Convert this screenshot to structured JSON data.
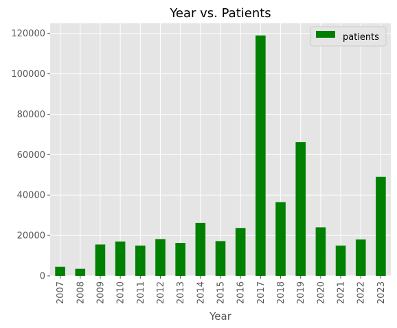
{
  "chart_data": {
    "type": "bar",
    "title": "Year vs. Patients",
    "xlabel": "Year",
    "ylabel": "",
    "categories": [
      "2007",
      "2008",
      "2009",
      "2010",
      "2011",
      "2012",
      "2013",
      "2014",
      "2015",
      "2016",
      "2017",
      "2018",
      "2019",
      "2020",
      "2021",
      "2022",
      "2023"
    ],
    "series": [
      {
        "name": "patients",
        "color": "#008000",
        "values": [
          4500,
          3500,
          15500,
          17000,
          15000,
          18200,
          16300,
          26200,
          17200,
          23700,
          119000,
          36500,
          66200,
          24000,
          15000,
          18000,
          49000
        ]
      }
    ],
    "ylim": [
      0,
      125000
    ],
    "yticks": [
      0,
      20000,
      40000,
      60000,
      80000,
      100000,
      120000
    ],
    "grid": true,
    "legend_position": "top-right",
    "background_color": "#e5e5e5",
    "grid_color": "#ffffff"
  }
}
